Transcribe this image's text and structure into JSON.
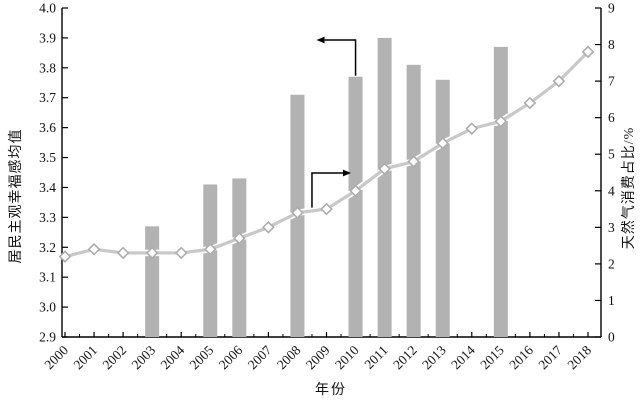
{
  "chart_data": {
    "type": "combo-bar-line-dual-axis",
    "x": [
      2000,
      2001,
      2002,
      2003,
      2004,
      2005,
      2006,
      2007,
      2008,
      2009,
      2010,
      2011,
      2012,
      2013,
      2014,
      2015,
      2016,
      2017,
      2018
    ],
    "series": [
      {
        "name": "居民主观幸福感均值",
        "type": "bar",
        "axis": "left",
        "points": [
          {
            "year": 2003,
            "value": 3.27
          },
          {
            "year": 2005,
            "value": 3.41
          },
          {
            "year": 2006,
            "value": 3.43
          },
          {
            "year": 2008,
            "value": 3.71
          },
          {
            "year": 2010,
            "value": 3.77
          },
          {
            "year": 2011,
            "value": 3.9
          },
          {
            "year": 2012,
            "value": 3.81
          },
          {
            "year": 2013,
            "value": 3.76
          },
          {
            "year": 2015,
            "value": 3.87
          }
        ]
      },
      {
        "name": "天然气消费占比/%",
        "type": "line",
        "axis": "right",
        "marker": "diamond",
        "values": [
          2.2,
          2.4,
          2.3,
          2.3,
          2.3,
          2.4,
          2.7,
          3.0,
          3.4,
          3.5,
          4.0,
          4.6,
          4.8,
          5.3,
          5.7,
          5.9,
          6.4,
          7.0,
          7.8
        ]
      }
    ],
    "left_axis": {
      "title": "居民主观幸福感均值",
      "min": 2.9,
      "max": 4.0,
      "step": 0.1,
      "tick_labels": [
        "2.9",
        "3.0",
        "3.1",
        "3.2",
        "3.3",
        "3.4",
        "3.5",
        "3.6",
        "3.7",
        "3.8",
        "3.9",
        "4.0"
      ]
    },
    "right_axis": {
      "title": "天然气消费占比/%",
      "min": 0,
      "max": 9,
      "step": 1,
      "tick_labels": [
        "0",
        "1",
        "2",
        "3",
        "4",
        "5",
        "6",
        "7",
        "8",
        "9"
      ]
    },
    "x_axis": {
      "title": "年份",
      "labels": [
        "2000",
        "2001",
        "2002",
        "2003",
        "2004",
        "2005",
        "2006",
        "2007",
        "2008",
        "2009",
        "2010",
        "2011",
        "2012",
        "2013",
        "2014",
        "2015",
        "2016",
        "2017",
        "2018"
      ],
      "label_rotation_deg": -45,
      "minor_ticks": "half-year"
    },
    "annotations": [
      {
        "kind": "axis-pointer-arrow",
        "series": "bar",
        "anchor_year": 2010,
        "direction": "left",
        "meaning": "bars read on left axis"
      },
      {
        "kind": "axis-pointer-arrow",
        "series": "line",
        "anchor_year": 2008.5,
        "direction": "right",
        "meaning": "line read on right axis"
      }
    ],
    "grid": false,
    "legend": false,
    "colors": {
      "bar": "#b2b2b2",
      "line": "#c8c8c8",
      "line_casing": "#ffffff",
      "marker_fill": "#ffffff",
      "marker_stroke": "#adadad",
      "axis": "#000000",
      "text": "#111111",
      "background": "#ffffff"
    }
  }
}
